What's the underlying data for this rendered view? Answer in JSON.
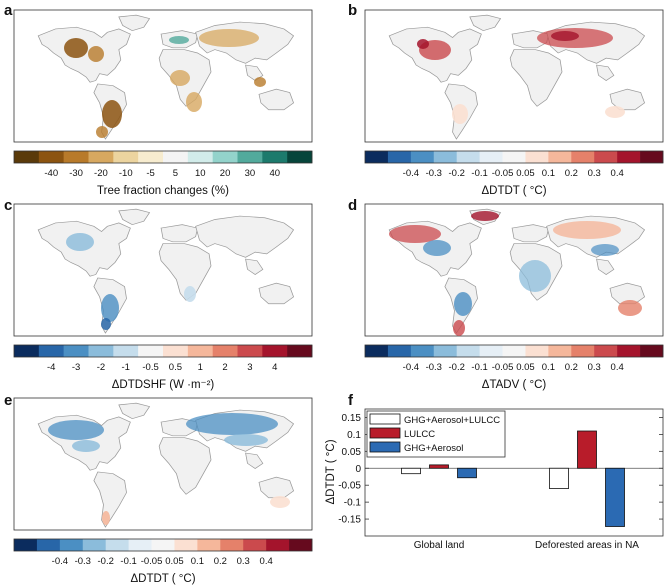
{
  "panels": [
    {
      "letter": "a",
      "cbar_label": "Tree fraction changes (%)",
      "ticks": [
        "-40",
        "-30",
        "-20",
        "-10",
        "-5",
        "5",
        "10",
        "20",
        "30",
        "40"
      ],
      "colors": [
        "#5a3a0a",
        "#8c5410",
        "#b87a2a",
        "#d7a860",
        "#ecd49f",
        "#f7eccf",
        "#f4f4f4",
        "#d2ecea",
        "#93d3cb",
        "#52aa9c",
        "#1c7a6c",
        "#06453b"
      ]
    },
    {
      "letter": "b",
      "cbar_label": "ΔDTDT ( °C)",
      "ticks": [
        "-0.4",
        "-0.3",
        "-0.2",
        "-0.1",
        "-0.05",
        "0.05",
        "0.1",
        "0.2",
        "0.3",
        "0.4"
      ],
      "colors": [
        "#0b2c5e",
        "#2866a8",
        "#4b8fc3",
        "#8bbcdb",
        "#c5ddec",
        "#e6eff6",
        "#f5f5f5",
        "#fbe0d2",
        "#f5b79b",
        "#e5816a",
        "#cb4a4d",
        "#a4142c",
        "#660a1e"
      ]
    },
    {
      "letter": "c",
      "cbar_label": "ΔDTDSHF (W ·m⁻²)",
      "ticks": [
        "-4",
        "-3",
        "-2",
        "-1",
        "-0.5",
        "0.5",
        "1",
        "2",
        "3",
        "4"
      ],
      "colors": [
        "#0b2c5e",
        "#2866a8",
        "#4b8fc3",
        "#8bbcdb",
        "#c5ddec",
        "#f5f5f5",
        "#fbe0d2",
        "#f5b79b",
        "#e5816a",
        "#cb4a4d",
        "#a4142c",
        "#660a1e"
      ]
    },
    {
      "letter": "d",
      "cbar_label": "ΔTADV ( °C)",
      "ticks": [
        "-0.4",
        "-0.3",
        "-0.2",
        "-0.1",
        "-0.05",
        "0.05",
        "0.1",
        "0.2",
        "0.3",
        "0.4"
      ],
      "colors": [
        "#0b2c5e",
        "#2866a8",
        "#4b8fc3",
        "#8bbcdb",
        "#c5ddec",
        "#e6eff6",
        "#f5f5f5",
        "#fbe0d2",
        "#f5b79b",
        "#e5816a",
        "#cb4a4d",
        "#a4142c",
        "#660a1e"
      ]
    },
    {
      "letter": "e",
      "cbar_label": "ΔDTDT ( °C)",
      "ticks": [
        "-0.4",
        "-0.3",
        "-0.2",
        "-0.1",
        "-0.05",
        "0.05",
        "0.1",
        "0.2",
        "0.3",
        "0.4"
      ],
      "colors": [
        "#0b2c5e",
        "#2866a8",
        "#4b8fc3",
        "#8bbcdb",
        "#c5ddec",
        "#e6eff6",
        "#f5f5f5",
        "#fbe0d2",
        "#f5b79b",
        "#e5816a",
        "#cb4a4d",
        "#a4142c",
        "#660a1e"
      ]
    }
  ],
  "chart_data": {
    "type": "bar",
    "panel_letter": "f",
    "title": "",
    "xlabel": "",
    "ylabel": "ΔDTDT ( °C)",
    "ylim": [
      -0.2,
      0.175
    ],
    "yticks": [
      "0.15",
      "0.1",
      "0.05",
      "0",
      "-0.05",
      "-0.1",
      "-0.15"
    ],
    "categories": [
      "Global land",
      "Deforested areas in NA"
    ],
    "series": [
      {
        "name": "GHG+Aerosol+LULCC",
        "color": "#ffffff",
        "values": [
          -0.016,
          -0.06
        ]
      },
      {
        "name": "LULCC",
        "color": "#b81c2a",
        "values": [
          0.01,
          0.11
        ]
      },
      {
        "name": "GHG+Aerosol",
        "color": "#2b6ab3",
        "values": [
          -0.028,
          -0.172
        ]
      }
    ],
    "legend": "top-left"
  }
}
